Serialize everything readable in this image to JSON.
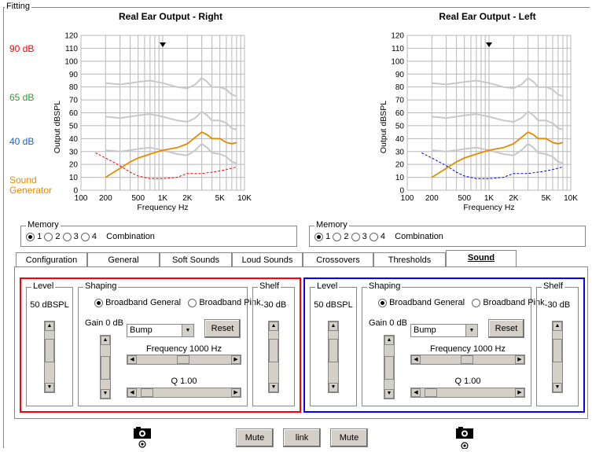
{
  "fitting": {
    "label": "Fitting"
  },
  "levels": {
    "level_90": "90 dB",
    "level_65": "65 dB",
    "level_40": "40 dB",
    "sound_generator": "Sound Generator",
    "color_90": "#ff0000",
    "color_65": "#2e9c2e",
    "color_40": "#1f5fbf",
    "color_sg": "#e88a00"
  },
  "charts": [
    {
      "title": "Real Ear Output - Right",
      "title_color": "#ff0000",
      "ylabel": "Output dBSPL",
      "xlabel": "Frequency Hz",
      "y_ticks": [
        "0",
        "10",
        "20",
        "30",
        "40",
        "50",
        "60",
        "70",
        "80",
        "90",
        "100",
        "110",
        "120"
      ],
      "x_ticks": [
        "100",
        "200",
        "500",
        "1K",
        "2K",
        "5K",
        "10K"
      ]
    },
    {
      "title": "Real Ear Output - Left",
      "title_color": "#0000ff",
      "ylabel": "Output dBSPL",
      "xlabel": "Frequency Hz",
      "y_ticks": [
        "0",
        "10",
        "20",
        "30",
        "40",
        "50",
        "60",
        "70",
        "80",
        "90",
        "100",
        "110",
        "120"
      ],
      "x_ticks": [
        "100",
        "200",
        "500",
        "1K",
        "2K",
        "5K",
        "10K"
      ]
    }
  ],
  "chart_data": [
    {
      "type": "line",
      "title": "Real Ear Output - Right",
      "xlabel": "Frequency Hz",
      "ylabel": "Output dBSPL",
      "x_scale": "log",
      "xlim": [
        100,
        10000
      ],
      "ylim": [
        0,
        120
      ],
      "grid": true,
      "marker_x": 1000,
      "series": [
        {
          "color": "#c8c8c8",
          "x": [
            200,
            300,
            400,
            500,
            700,
            1000,
            1500,
            2000,
            2500,
            3000,
            3500,
            4000,
            5000,
            6000,
            7000,
            8000
          ],
          "y": [
            83,
            82,
            83,
            84,
            85,
            83,
            80,
            79,
            82,
            87,
            84,
            80,
            80,
            78,
            74,
            73
          ]
        },
        {
          "color": "#c8c8c8",
          "x": [
            200,
            300,
            400,
            500,
            700,
            1000,
            1500,
            2000,
            2500,
            3000,
            3500,
            4000,
            5000,
            6000,
            7000,
            8000
          ],
          "y": [
            57,
            56,
            57,
            58,
            59,
            57,
            54,
            53,
            56,
            61,
            58,
            54,
            54,
            52,
            48,
            47
          ]
        },
        {
          "color": "#c8c8c8",
          "x": [
            200,
            300,
            400,
            500,
            700,
            1000,
            1500,
            2000,
            2500,
            3000,
            3500,
            4000,
            5000,
            6000,
            7000,
            8000
          ],
          "y": [
            31,
            30,
            31,
            32,
            33,
            31,
            28,
            27,
            31,
            36,
            33,
            29,
            28,
            26,
            22,
            21
          ]
        },
        {
          "color": "#e88a00",
          "x": [
            200,
            300,
            400,
            500,
            700,
            1000,
            1500,
            2000,
            2500,
            3000,
            3500,
            4000,
            5000,
            6000,
            7000,
            8000
          ],
          "y": [
            10,
            17,
            22,
            25,
            28,
            31,
            33,
            36,
            41,
            45,
            43,
            40,
            40,
            37,
            36,
            37
          ]
        },
        {
          "color": "#ff0000",
          "dashed": true,
          "x": [
            150,
            200,
            300,
            400,
            500,
            700,
            1000,
            1500,
            2000,
            3000,
            4000,
            5000,
            6000,
            8000
          ],
          "y": [
            29,
            25,
            19,
            14,
            11,
            9,
            9,
            10,
            13,
            13,
            14,
            15,
            16,
            18
          ]
        }
      ]
    },
    {
      "type": "line",
      "title": "Real Ear Output - Left",
      "xlabel": "Frequency Hz",
      "ylabel": "Output dBSPL",
      "x_scale": "log",
      "xlim": [
        100,
        10000
      ],
      "ylim": [
        0,
        120
      ],
      "grid": true,
      "marker_x": 1000,
      "series": [
        {
          "color": "#c8c8c8",
          "x": [
            200,
            300,
            400,
            500,
            700,
            1000,
            1500,
            2000,
            2500,
            3000,
            3500,
            4000,
            5000,
            6000,
            7000,
            8000
          ],
          "y": [
            83,
            82,
            83,
            84,
            85,
            83,
            80,
            79,
            82,
            87,
            84,
            80,
            80,
            78,
            74,
            73
          ]
        },
        {
          "color": "#c8c8c8",
          "x": [
            200,
            300,
            400,
            500,
            700,
            1000,
            1500,
            2000,
            2500,
            3000,
            3500,
            4000,
            5000,
            6000,
            7000,
            8000
          ],
          "y": [
            57,
            56,
            57,
            58,
            59,
            57,
            54,
            53,
            56,
            61,
            58,
            54,
            54,
            52,
            48,
            47
          ]
        },
        {
          "color": "#c8c8c8",
          "x": [
            200,
            300,
            400,
            500,
            700,
            1000,
            1500,
            2000,
            2500,
            3000,
            3500,
            4000,
            5000,
            6000,
            7000,
            8000
          ],
          "y": [
            31,
            30,
            31,
            32,
            33,
            31,
            28,
            27,
            31,
            36,
            33,
            29,
            28,
            26,
            22,
            21
          ]
        },
        {
          "color": "#e88a00",
          "x": [
            200,
            300,
            400,
            500,
            700,
            1000,
            1500,
            2000,
            2500,
            3000,
            3500,
            4000,
            5000,
            6000,
            7000,
            8000
          ],
          "y": [
            10,
            17,
            22,
            25,
            28,
            31,
            33,
            36,
            41,
            45,
            43,
            40,
            40,
            37,
            36,
            37
          ]
        },
        {
          "color": "#0000ff",
          "dashed": true,
          "x": [
            150,
            200,
            300,
            400,
            500,
            700,
            1000,
            1500,
            2000,
            3000,
            4000,
            5000,
            6000,
            8000
          ],
          "y": [
            29,
            25,
            19,
            14,
            11,
            9,
            9,
            10,
            13,
            13,
            14,
            15,
            16,
            18
          ]
        }
      ]
    }
  ],
  "memory": {
    "label": "Memory",
    "options": [
      "1",
      "2",
      "3",
      "4"
    ],
    "selected": "1",
    "combination": "Combination"
  },
  "tabs": [
    "Configuration",
    "General",
    "Soft Sounds",
    "Loud Sounds",
    "Crossovers",
    "Thresholds",
    "Sound Generator"
  ],
  "active_tab": "Sound Generator",
  "sg_panels": [
    {
      "border_color": "#ff0000",
      "level_label": "Level",
      "level_value": "50 dBSPL",
      "level_fraction": 0.75,
      "shaping_label": "Shaping",
      "opt_general": "Broadband General",
      "opt_pink": "Broadband Pink",
      "selected": "Broadband General",
      "gain_label": "Gain  0 dB",
      "gain_fraction": 0.5,
      "combo_value": "Bump",
      "reset_label": "Reset",
      "freq_label": "Frequency  1000 Hz",
      "freq_fraction": 0.48,
      "q_label": "Q 1.00",
      "q_fraction": 0.05,
      "shelf_label": "Shelf",
      "shelf_value": "-30 dB",
      "shelf_fraction": 0.75
    },
    {
      "border_color": "#0000ff",
      "level_label": "Level",
      "level_value": "50 dBSPL",
      "level_fraction": 0.75,
      "shaping_label": "Shaping",
      "opt_general": "Broadband General",
      "opt_pink": "Broadband Pink",
      "selected": "Broadband General",
      "gain_label": "Gain  0 dB",
      "gain_fraction": 0.5,
      "combo_value": "Bump",
      "reset_label": "Reset",
      "freq_label": "Frequency  1000 Hz",
      "freq_fraction": 0.48,
      "q_label": "Q 1.00",
      "q_fraction": 0.05,
      "shelf_label": "Shelf",
      "shelf_value": "-30 dB",
      "shelf_fraction": 0.75
    }
  ],
  "footer": {
    "mute_left": "Mute",
    "link": "link",
    "mute_right": "Mute"
  },
  "icons": {
    "camera_left": "camera-icon",
    "camera_right": "camera-icon",
    "target": "target-icon"
  }
}
